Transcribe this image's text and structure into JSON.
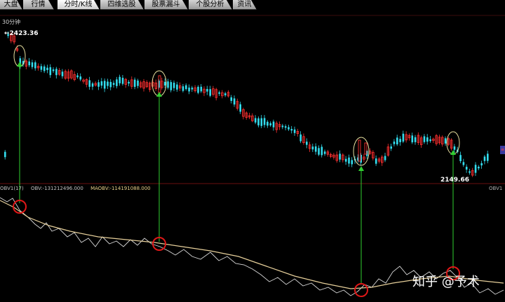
{
  "tabs": [
    {
      "label": "大盘",
      "active": false
    },
    {
      "label": "行情",
      "active": false
    },
    {
      "label": "分时/K线",
      "active": true
    },
    {
      "label": "四维选股",
      "active": false
    },
    {
      "label": "股票漏斗",
      "active": false
    },
    {
      "label": "个股分析",
      "active": false
    },
    {
      "label": "资讯",
      "active": false
    }
  ],
  "chart": {
    "period_label": "30分钟",
    "price_high_label": "←2423.36",
    "price_low_label": "2149.66",
    "indicator": {
      "name": "OBV1(17)",
      "obv_label": "OBV:-131212496.000",
      "maobv_label": "MAOBV:-114191088.000",
      "right_label": "OBV1"
    },
    "colors": {
      "up": "#ff3030",
      "down": "#33ddee",
      "obv_line": "#d8d8d8",
      "maobv_line": "#e6cf9a",
      "signal_arrow": "#30d030",
      "highlight_ellipse": "#e8e0a0",
      "signal_circle": "#e01818"
    }
  },
  "watermark": "知乎 @予术"
}
